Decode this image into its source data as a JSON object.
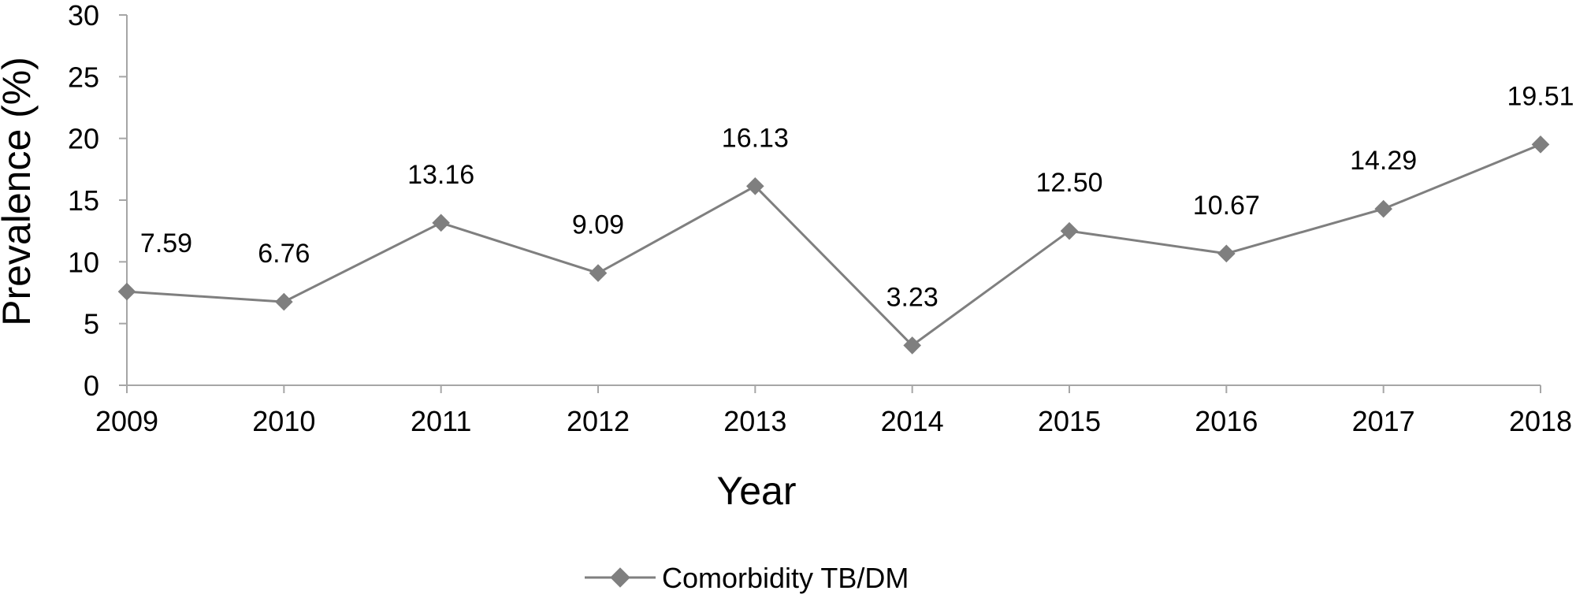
{
  "chart_data": {
    "type": "line",
    "title": "",
    "xlabel": "Year",
    "ylabel": "Prevalence (%)",
    "categories": [
      "2009",
      "2010",
      "2011",
      "2012",
      "2013",
      "2014",
      "2015",
      "2016",
      "2017",
      "2018"
    ],
    "yticks": [
      "0",
      "5",
      "10",
      "15",
      "20",
      "25",
      "30"
    ],
    "ylim": [
      0,
      30
    ],
    "grid": false,
    "legend_position": "bottom",
    "series": [
      {
        "name": "Comorbidity TB/DM",
        "values": [
          7.59,
          6.76,
          13.16,
          9.09,
          16.13,
          3.23,
          12.5,
          10.67,
          14.29,
          19.51
        ],
        "labels": [
          "7.59",
          "6.76",
          "13.16",
          "9.09",
          "16.13",
          "3.23",
          "12.50",
          "10.67",
          "14.29",
          "19.51"
        ],
        "color": "#7f7f7f",
        "marker": "diamond"
      }
    ],
    "axis_color": "#a6a6a6"
  }
}
